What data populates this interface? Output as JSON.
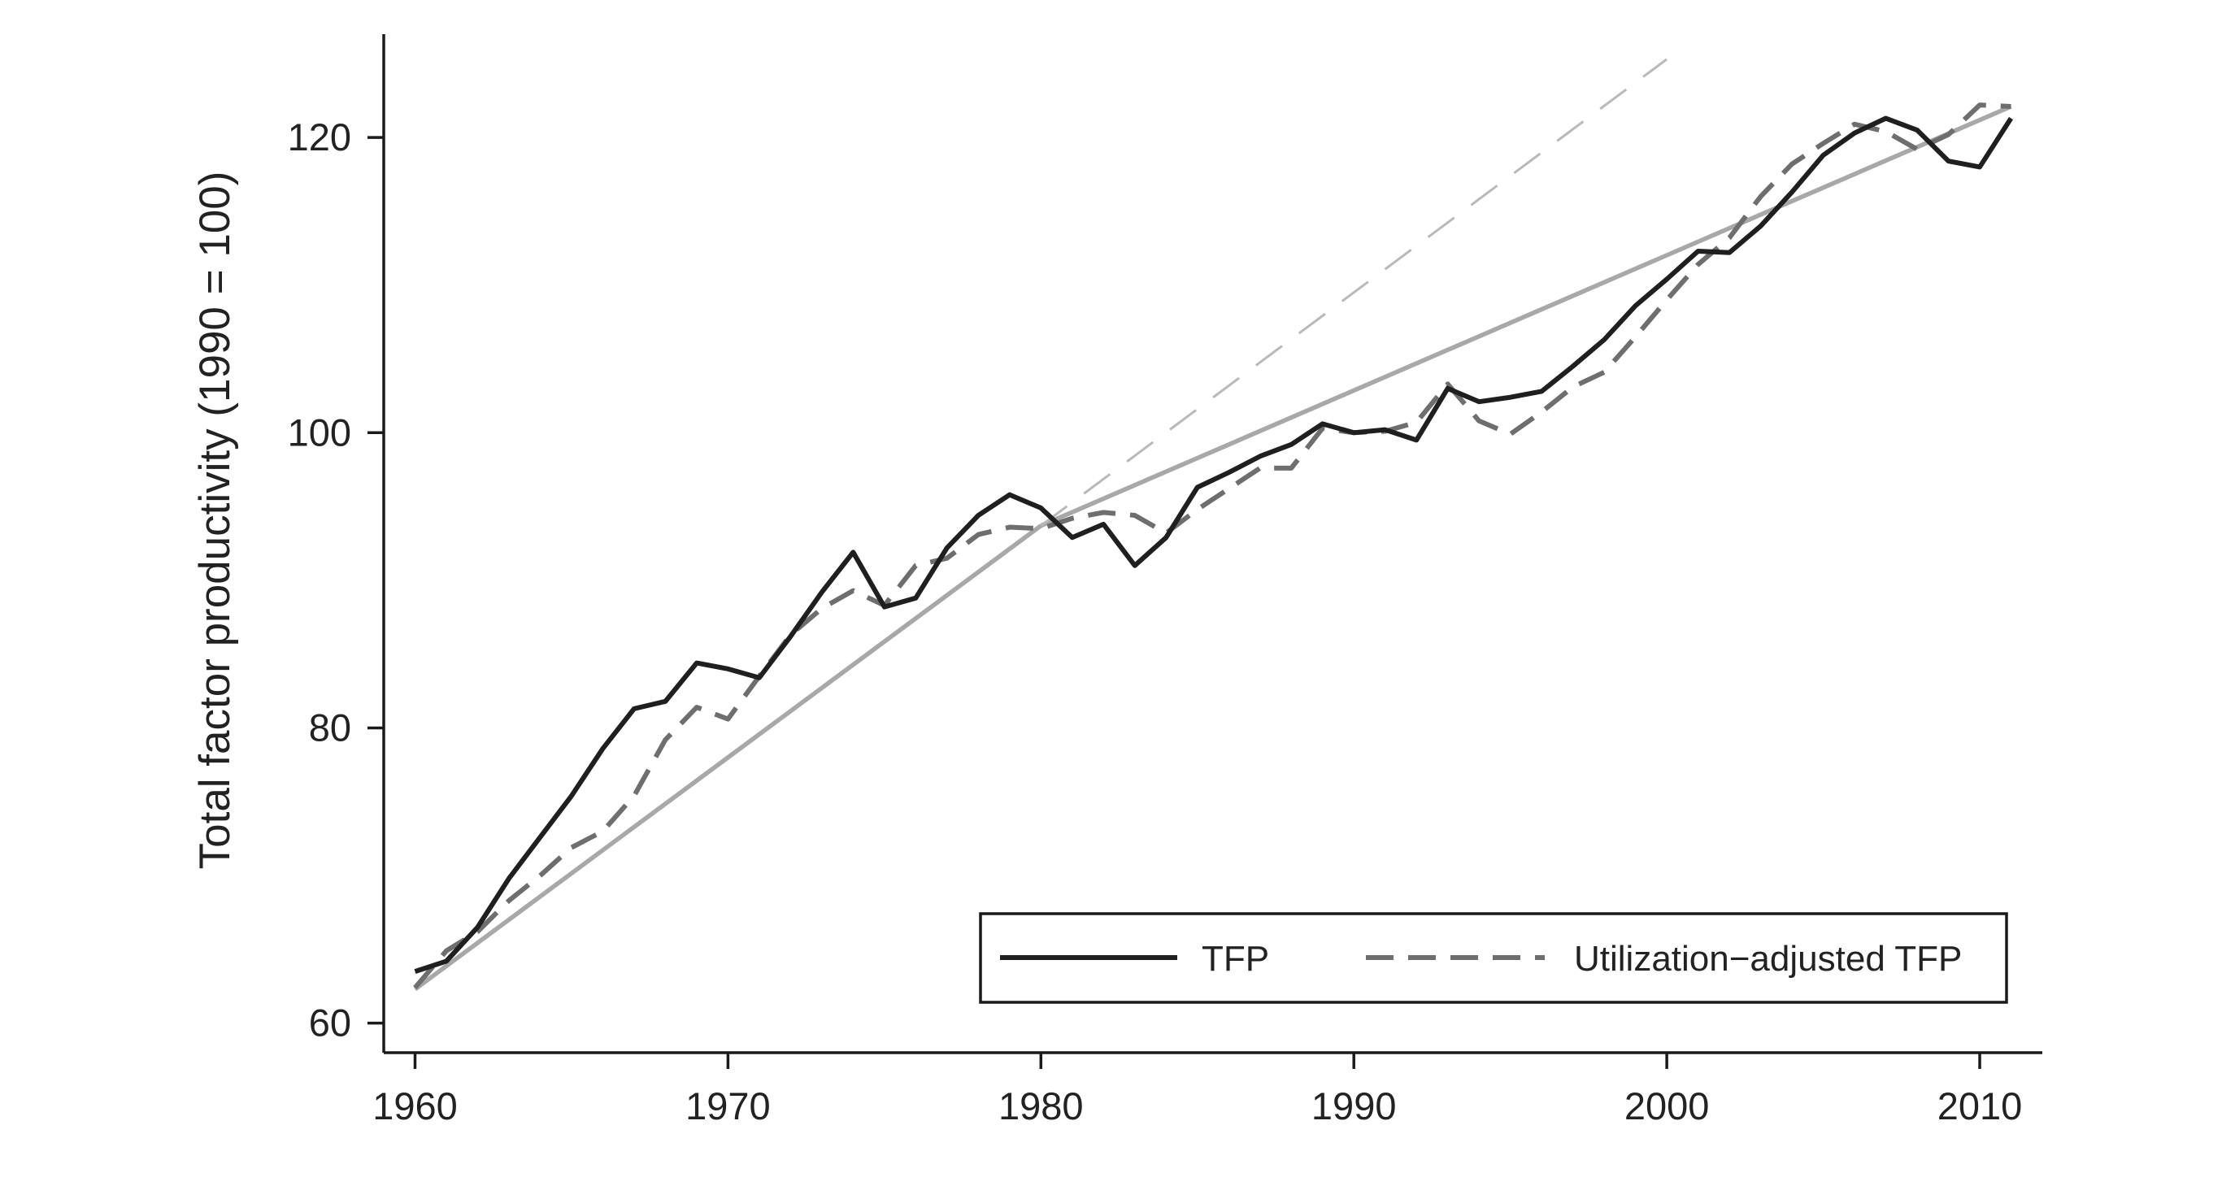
{
  "chart_data": {
    "type": "line",
    "title": "",
    "xlabel": "",
    "ylabel": "Total factor productivity (1990 = 100)",
    "xlim": [
      1959,
      2012
    ],
    "ylim": [
      58,
      127
    ],
    "x_ticks": [
      1960,
      1970,
      1980,
      1990,
      2000,
      2010
    ],
    "y_ticks": [
      60,
      80,
      100,
      120
    ],
    "grid": false,
    "legend": {
      "placement": "bottom-right",
      "boxed": true
    },
    "series": [
      {
        "name": "TFP",
        "style": "solid",
        "color": "#1f1f1f",
        "x": [
          1960,
          1961,
          1962,
          1963,
          1964,
          1965,
          1966,
          1967,
          1968,
          1969,
          1970,
          1971,
          1972,
          1973,
          1974,
          1975,
          1976,
          1977,
          1978,
          1979,
          1980,
          1981,
          1982,
          1983,
          1984,
          1985,
          1986,
          1987,
          1988,
          1989,
          1990,
          1991,
          1992,
          1993,
          1994,
          1995,
          1996,
          1997,
          1998,
          1999,
          2000,
          2001,
          2002,
          2003,
          2004,
          2005,
          2006,
          2007,
          2008,
          2009,
          2010,
          2011
        ],
        "values": [
          63.5,
          64.2,
          66.5,
          69.8,
          72.6,
          75.4,
          78.6,
          81.3,
          81.8,
          84.4,
          84.0,
          83.4,
          86.2,
          89.2,
          91.9,
          88.2,
          88.8,
          92.2,
          94.4,
          95.8,
          94.9,
          92.9,
          93.8,
          91.0,
          92.9,
          96.3,
          97.3,
          98.4,
          99.2,
          100.6,
          100.0,
          100.2,
          99.5,
          103.0,
          102.1,
          102.4,
          102.8,
          104.5,
          106.3,
          108.6,
          110.4,
          112.3,
          112.2,
          114.0,
          116.3,
          118.8,
          120.3,
          121.3,
          120.5,
          118.4,
          118.0,
          121.3
        ]
      },
      {
        "name": "Utilization−adjusted TFP",
        "style": "dashed",
        "color": "#6e6e6e",
        "x": [
          1960,
          1961,
          1962,
          1963,
          1964,
          1965,
          1966,
          1967,
          1968,
          1969,
          1970,
          1971,
          1972,
          1973,
          1974,
          1975,
          1976,
          1977,
          1978,
          1979,
          1980,
          1981,
          1982,
          1983,
          1984,
          1985,
          1986,
          1987,
          1988,
          1989,
          1990,
          1991,
          1992,
          1993,
          1994,
          1995,
          1996,
          1997,
          1998,
          1999,
          2000,
          2001,
          2002,
          2003,
          2004,
          2005,
          2006,
          2007,
          2008,
          2009,
          2010,
          2011
        ],
        "values": [
          62.4,
          64.9,
          66.2,
          68.3,
          70.0,
          71.9,
          73.0,
          75.4,
          79.2,
          81.4,
          80.6,
          83.5,
          86.3,
          88.1,
          89.3,
          88.3,
          91.0,
          91.5,
          93.1,
          93.6,
          93.5,
          94.2,
          94.6,
          94.4,
          93.2,
          94.8,
          96.2,
          97.6,
          97.6,
          100.3,
          100.0,
          100.1,
          100.7,
          103.3,
          100.8,
          99.9,
          101.4,
          103.1,
          104.1,
          106.5,
          109.0,
          111.4,
          113.2,
          116.0,
          118.2,
          119.6,
          120.9,
          120.4,
          119.2,
          120.2,
          122.2,
          122.1
        ]
      }
    ],
    "trend_lines": [
      {
        "style": "solid",
        "color": "#a8a8a8",
        "x": [
          1960,
          1980
        ],
        "values": [
          62.3,
          93.7
        ]
      },
      {
        "style": "solid",
        "color": "#a8a8a8",
        "x": [
          1980,
          2011
        ],
        "values": [
          93.7,
          122.1
        ]
      },
      {
        "style": "dashed",
        "color": "#b9b9b9",
        "x": [
          1980,
          2000
        ],
        "values": [
          93.7,
          125.3
        ]
      }
    ]
  }
}
